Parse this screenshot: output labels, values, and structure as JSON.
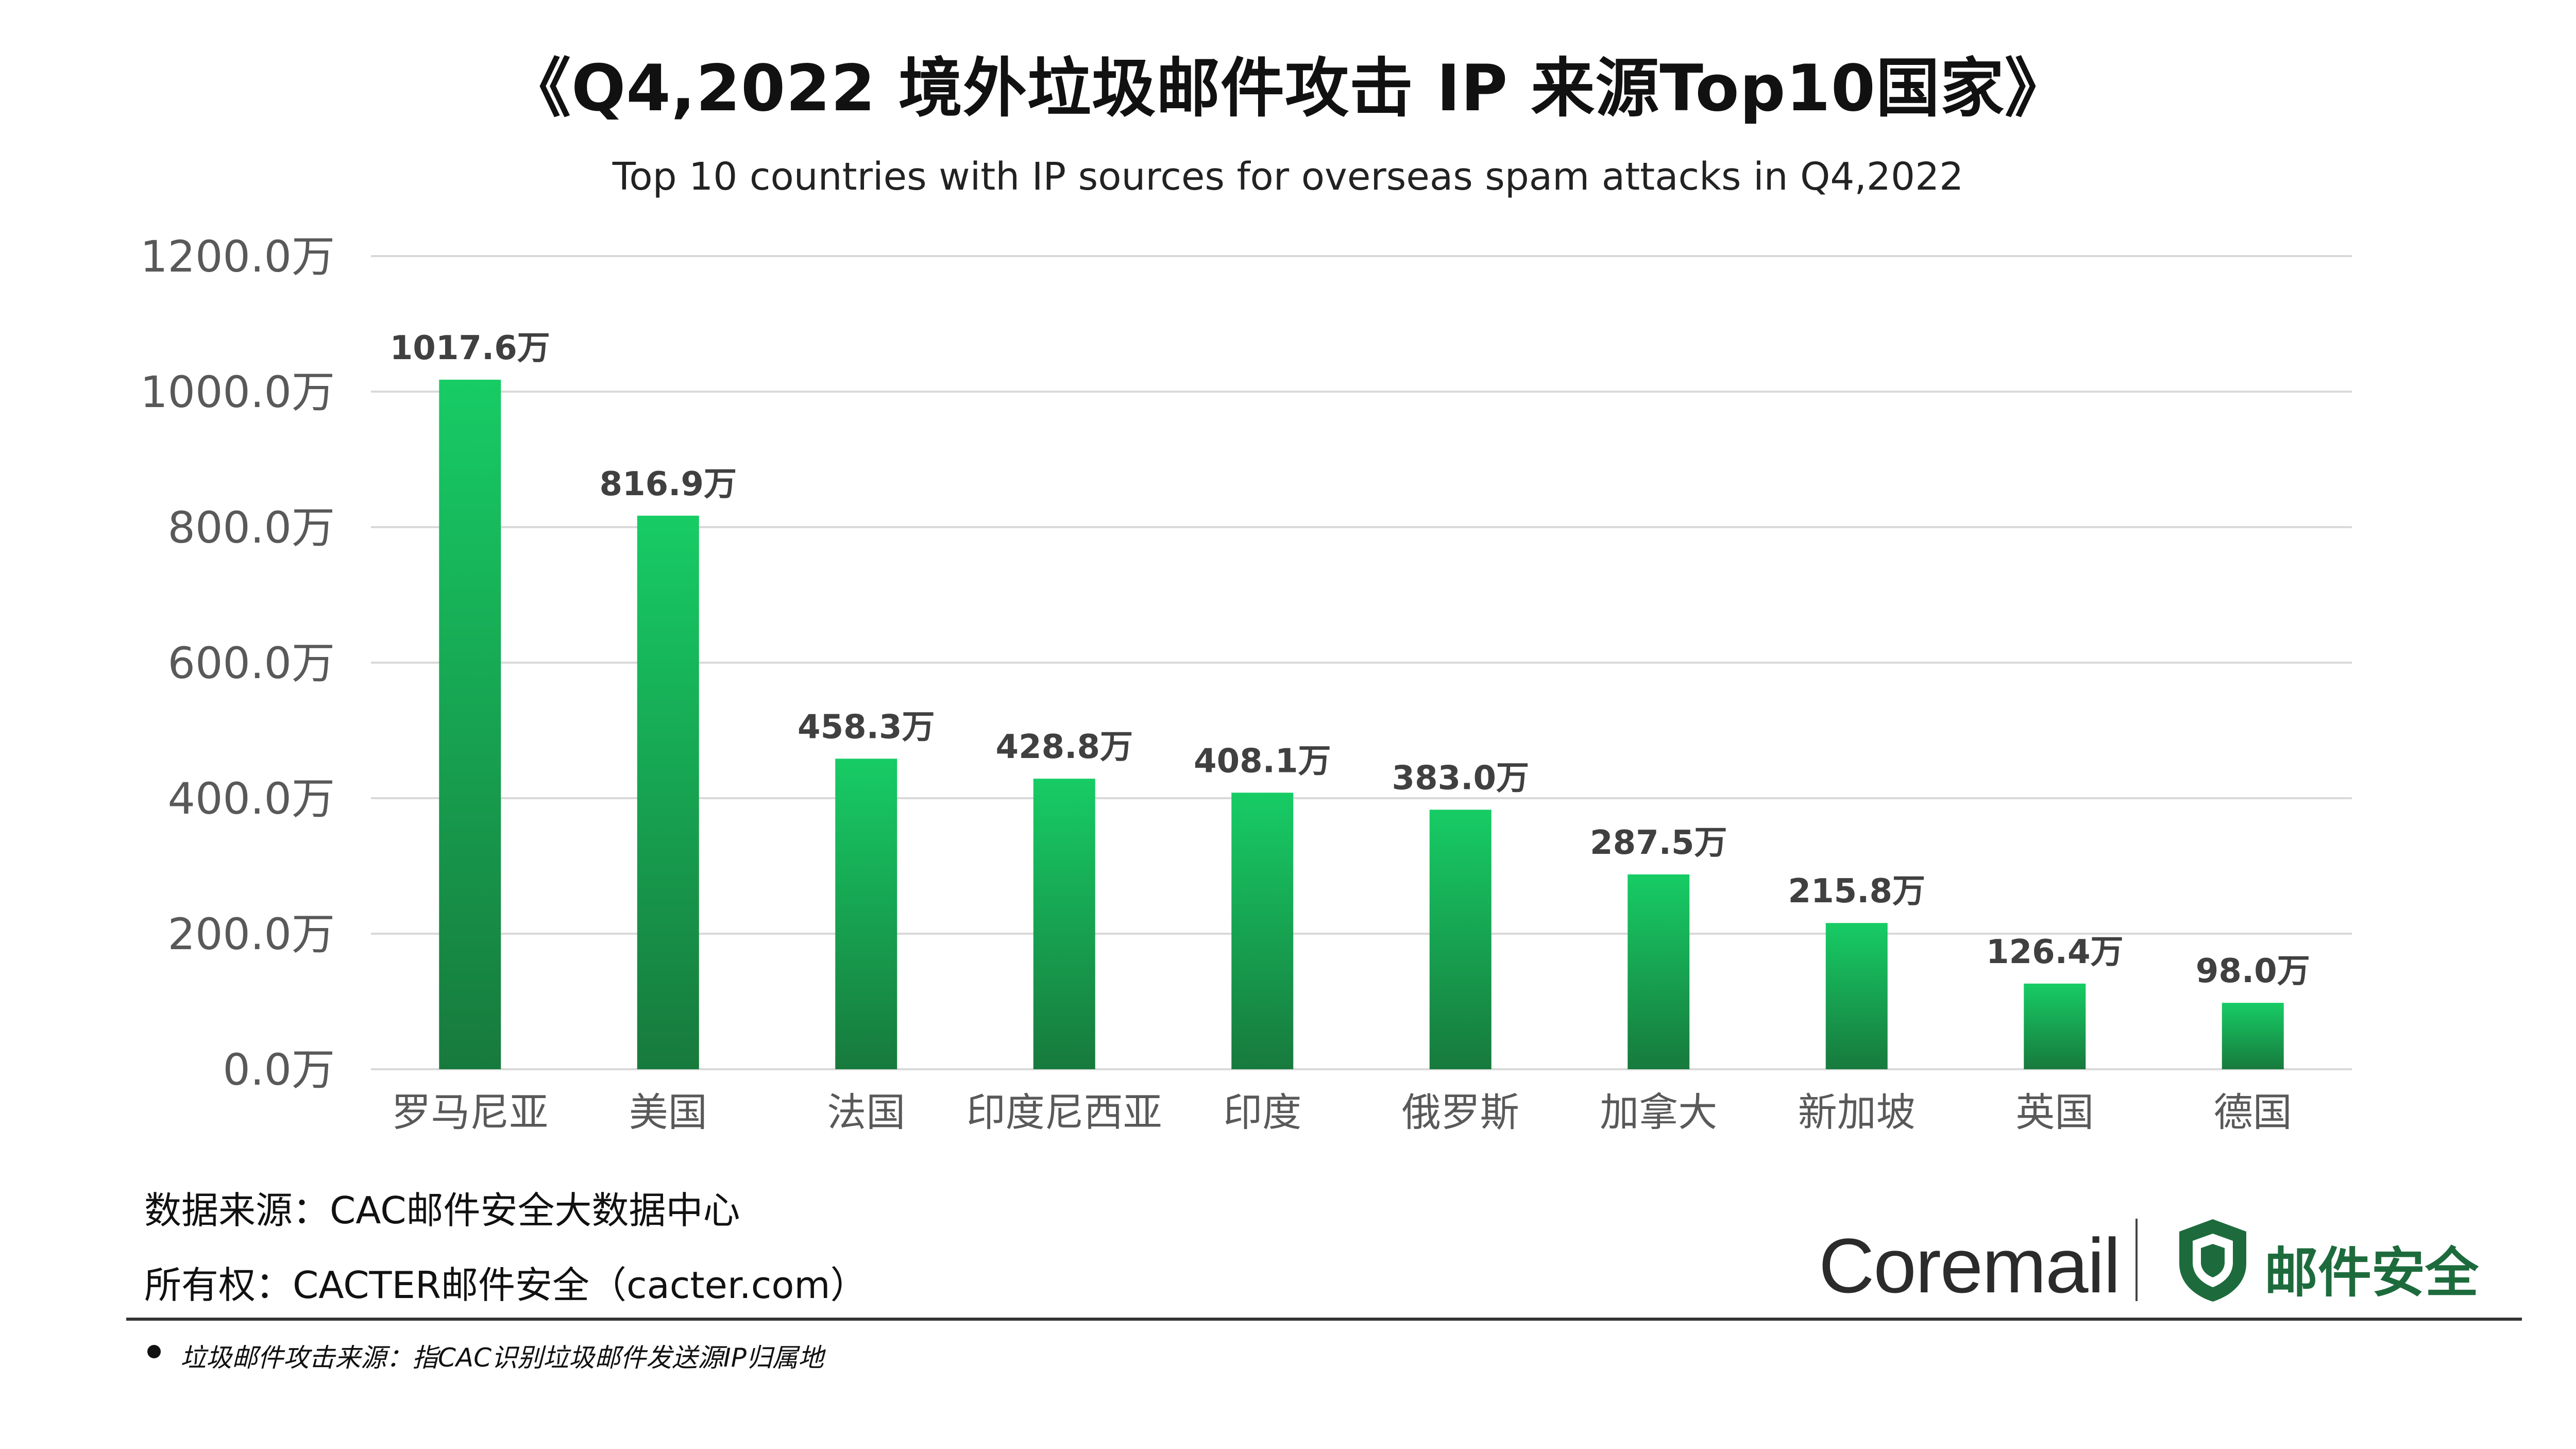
{
  "header": {
    "title": "《Q4,2022 境外垃圾邮件攻击 IP 来源Top10国家》",
    "subtitle": "Top 10 countries with IP sources for overseas spam attacks in Q4,2022"
  },
  "chart_data": {
    "type": "bar",
    "title": "《Q4,2022 境外垃圾邮件攻击 IP 来源Top10国家》",
    "subtitle": "Top 10 countries with IP sources for overseas spam attacks in Q4,2022",
    "categories": [
      "罗马尼亚",
      "美国",
      "法国",
      "印度尼西亚",
      "印度",
      "俄罗斯",
      "加拿大",
      "新加坡",
      "英国",
      "德国"
    ],
    "values": [
      1017.6,
      816.9,
      458.3,
      428.8,
      408.1,
      383.0,
      287.5,
      215.8,
      126.4,
      98.0
    ],
    "value_labels": [
      "1017.6万",
      "816.9万",
      "458.3万",
      "428.8万",
      "408.1万",
      "383.0万",
      "287.5万",
      "215.8万",
      "126.4万",
      "98.0万"
    ],
    "yticks": [
      0,
      200,
      400,
      600,
      800,
      1000,
      1200
    ],
    "ytick_labels": [
      "0.0万",
      "200.0万",
      "400.0万",
      "600.0万",
      "800.0万",
      "1000.0万",
      "1200.0万"
    ],
    "ylim": [
      0,
      1200
    ],
    "xlabel": "",
    "ylabel": "",
    "grid": true,
    "bar_color_top": "#17cc65",
    "bar_color_bottom": "#177a3d"
  },
  "footer": {
    "source_line1": "数据来源：CAC邮件安全大数据中心",
    "source_line2": "所有权：CACTER邮件安全（cacter.com）",
    "brand": "Coremail",
    "brand_cn": "邮件安全",
    "footnote": "垃圾邮件攻击来源：指CAC识别垃圾邮件发送源IP归属地",
    "shield_color": "#1d6b3c"
  }
}
